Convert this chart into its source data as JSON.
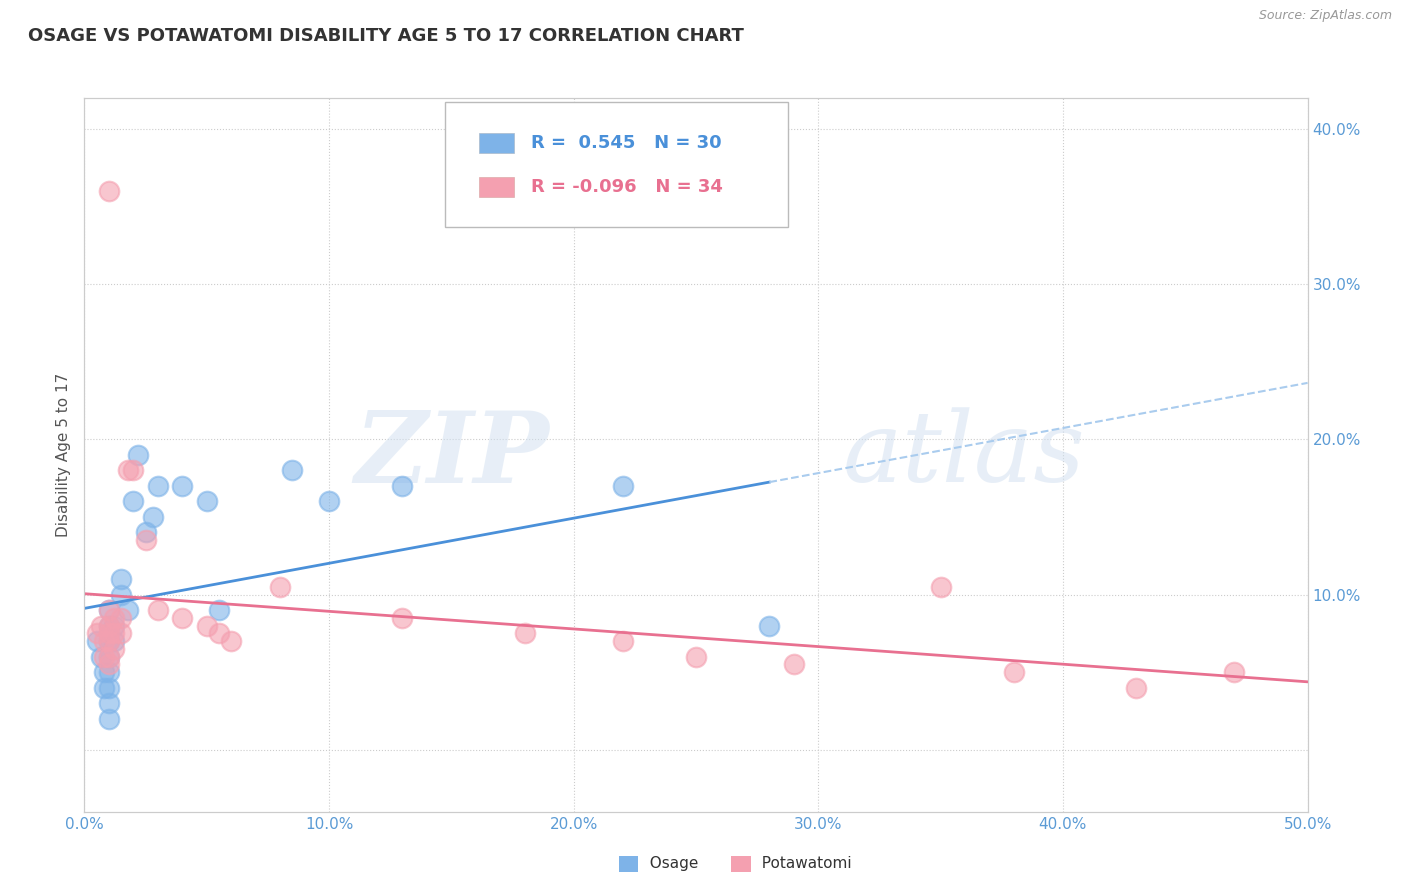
{
  "title": "OSAGE VS POTAWATOMI DISABILITY AGE 5 TO 17 CORRELATION CHART",
  "source": "Source: ZipAtlas.com",
  "ylabel": "Disability Age 5 to 17",
  "xlim": [
    0.0,
    0.5
  ],
  "ylim": [
    -0.04,
    0.42
  ],
  "xticks": [
    0.0,
    0.1,
    0.2,
    0.3,
    0.4,
    0.5
  ],
  "xtick_labels": [
    "0.0%",
    "10.0%",
    "20.0%",
    "30.0%",
    "40.0%",
    "50.0%"
  ],
  "yticks": [
    0.0,
    0.1,
    0.2,
    0.3,
    0.4
  ],
  "ytick_labels": [
    "",
    "",
    "",
    "",
    ""
  ],
  "right_ytick_labels": [
    "10.0%",
    "20.0%",
    "30.0%",
    "40.0%"
  ],
  "right_ytick_positions": [
    0.1,
    0.2,
    0.3,
    0.4
  ],
  "watermark_zip": "ZIP",
  "watermark_atlas": "atlas",
  "legend": {
    "osage_R": "0.545",
    "osage_N": "30",
    "potawatomi_R": "-0.096",
    "potawatomi_N": "34"
  },
  "osage_color": "#7EB3E8",
  "potawatomi_color": "#F4A0B0",
  "osage_line_color": "#4A90D9",
  "potawatomi_line_color": "#E87090",
  "background_color": "#FFFFFF",
  "grid_color": "#CCCCCC",
  "title_color": "#333333",
  "tick_color": "#5B9BD5",
  "osage_points": [
    [
      0.005,
      0.07
    ],
    [
      0.007,
      0.06
    ],
    [
      0.008,
      0.05
    ],
    [
      0.008,
      0.04
    ],
    [
      0.01,
      0.09
    ],
    [
      0.01,
      0.08
    ],
    [
      0.01,
      0.07
    ],
    [
      0.01,
      0.06
    ],
    [
      0.01,
      0.05
    ],
    [
      0.01,
      0.04
    ],
    [
      0.01,
      0.03
    ],
    [
      0.01,
      0.02
    ],
    [
      0.012,
      0.08
    ],
    [
      0.012,
      0.07
    ],
    [
      0.015,
      0.11
    ],
    [
      0.015,
      0.1
    ],
    [
      0.018,
      0.09
    ],
    [
      0.02,
      0.16
    ],
    [
      0.022,
      0.19
    ],
    [
      0.025,
      0.14
    ],
    [
      0.028,
      0.15
    ],
    [
      0.03,
      0.17
    ],
    [
      0.04,
      0.17
    ],
    [
      0.05,
      0.16
    ],
    [
      0.055,
      0.09
    ],
    [
      0.085,
      0.18
    ],
    [
      0.1,
      0.16
    ],
    [
      0.13,
      0.17
    ],
    [
      0.22,
      0.17
    ],
    [
      0.28,
      0.08
    ]
  ],
  "potawatomi_points": [
    [
      0.005,
      0.075
    ],
    [
      0.007,
      0.08
    ],
    [
      0.008,
      0.07
    ],
    [
      0.008,
      0.06
    ],
    [
      0.01,
      0.09
    ],
    [
      0.01,
      0.08
    ],
    [
      0.01,
      0.075
    ],
    [
      0.01,
      0.07
    ],
    [
      0.01,
      0.06
    ],
    [
      0.01,
      0.055
    ],
    [
      0.012,
      0.085
    ],
    [
      0.012,
      0.075
    ],
    [
      0.012,
      0.065
    ],
    [
      0.015,
      0.085
    ],
    [
      0.015,
      0.075
    ],
    [
      0.018,
      0.18
    ],
    [
      0.02,
      0.18
    ],
    [
      0.025,
      0.135
    ],
    [
      0.03,
      0.09
    ],
    [
      0.04,
      0.085
    ],
    [
      0.05,
      0.08
    ],
    [
      0.055,
      0.075
    ],
    [
      0.06,
      0.07
    ],
    [
      0.01,
      0.36
    ],
    [
      0.08,
      0.105
    ],
    [
      0.13,
      0.085
    ],
    [
      0.18,
      0.075
    ],
    [
      0.22,
      0.07
    ],
    [
      0.25,
      0.06
    ],
    [
      0.29,
      0.055
    ],
    [
      0.35,
      0.105
    ],
    [
      0.38,
      0.05
    ],
    [
      0.43,
      0.04
    ],
    [
      0.47,
      0.05
    ]
  ]
}
